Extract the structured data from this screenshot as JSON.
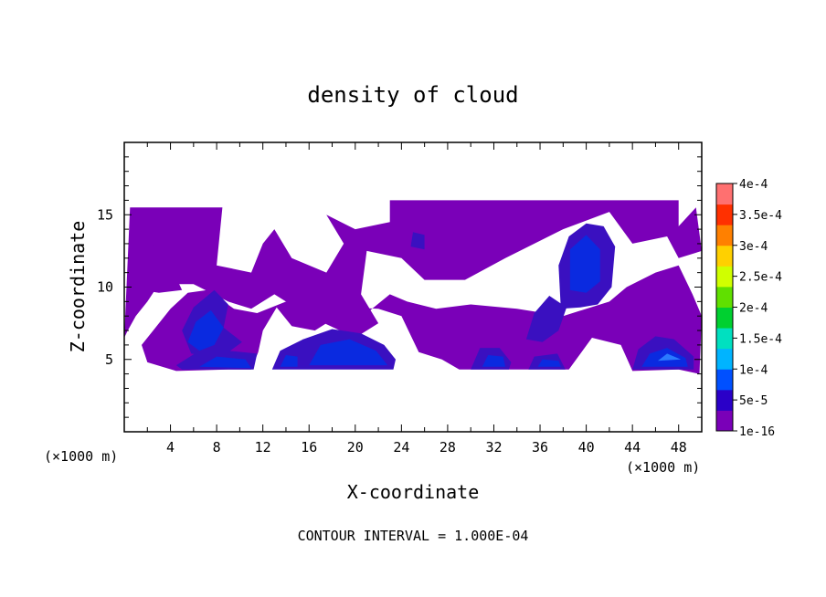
{
  "chart_data": {
    "type": "heatmap",
    "title": "density of cloud",
    "xlabel": "X-coordinate",
    "ylabel": "Z-coordinate",
    "x_unit": "(×1000 m)",
    "y_unit": "(×1000 m)",
    "footer": "CONTOUR INTERVAL = 1.000E-04",
    "xlim": [
      0,
      50
    ],
    "ylim": [
      0,
      20
    ],
    "x_ticks": [
      4,
      8,
      12,
      16,
      20,
      24,
      28,
      32,
      36,
      40,
      44,
      48
    ],
    "x_tick_labels": [
      "4",
      "8",
      "12",
      "16",
      "20",
      "24",
      "28",
      "32",
      "36",
      "40",
      "44",
      "48"
    ],
    "y_ticks": [
      5,
      10,
      15
    ],
    "y_tick_labels": [
      "5",
      "10",
      "15"
    ],
    "colorbar": {
      "labels": [
        "1e-16",
        "5e-5",
        "1e-4",
        "1.5e-4",
        "2e-4",
        "2.5e-4",
        "3e-4",
        "3.5e-4",
        "4e-4"
      ],
      "colors": [
        "#7a00b8",
        "#2a00c8",
        "#0050ff",
        "#00b4ff",
        "#00e0c0",
        "#00d030",
        "#60e000",
        "#d0ff00",
        "#ffd000",
        "#ff8000",
        "#ff3000",
        "#ff7070"
      ]
    },
    "colors": {
      "background": "#7a00b8",
      "mid": "#3a10c0",
      "high": "#0a2ae0",
      "peak": "#2a7aff"
    },
    "regions": [
      {
        "level": "background",
        "points": [
          [
            0,
            6.5
          ],
          [
            0.5,
            15.5
          ],
          [
            8.5,
            15.5
          ],
          [
            8,
            11.5
          ],
          [
            11,
            11
          ],
          [
            12,
            13
          ],
          [
            13,
            14
          ],
          [
            14.5,
            12
          ],
          [
            17.5,
            11
          ],
          [
            19,
            13
          ],
          [
            17.5,
            15
          ],
          [
            20,
            14
          ],
          [
            23,
            14.5
          ],
          [
            23,
            16
          ],
          [
            48,
            16
          ],
          [
            48,
            14.2
          ],
          [
            49.5,
            15.5
          ],
          [
            50,
            12.5
          ],
          [
            48,
            12
          ],
          [
            47,
            13.5
          ],
          [
            44,
            13
          ],
          [
            42,
            15.2
          ],
          [
            38,
            14
          ],
          [
            33,
            12
          ],
          [
            29.5,
            10.5
          ],
          [
            26,
            10.5
          ],
          [
            24,
            12
          ],
          [
            21,
            12.5
          ],
          [
            20.5,
            9.5
          ],
          [
            22,
            7.5
          ],
          [
            20,
            6.5
          ],
          [
            16,
            8
          ],
          [
            13,
            9.5
          ],
          [
            11,
            8.5
          ],
          [
            9,
            9
          ],
          [
            6,
            10.2
          ],
          [
            3,
            10.2
          ],
          [
            2,
            9
          ],
          [
            1,
            8
          ],
          [
            0.3,
            7
          ]
        ]
      },
      {
        "level": "background",
        "points": [
          [
            0.5,
            10.2
          ],
          [
            2,
            13
          ],
          [
            3,
            12.8
          ],
          [
            2.8,
            11
          ],
          [
            4,
            11.5
          ],
          [
            5,
            9.8
          ],
          [
            3,
            9.6
          ],
          [
            1.5,
            9.8
          ]
        ]
      },
      {
        "level": "background",
        "points": [
          [
            1.5,
            6
          ],
          [
            2,
            4.8
          ],
          [
            4.5,
            4.2
          ],
          [
            9,
            4.3
          ],
          [
            11,
            4.3
          ],
          [
            11.6,
            5.5
          ],
          [
            12,
            7
          ],
          [
            13.2,
            8.6
          ],
          [
            14.5,
            7.3
          ],
          [
            16.5,
            7
          ],
          [
            17.5,
            7.5
          ],
          [
            19.5,
            8.6
          ],
          [
            22,
            8.5
          ],
          [
            24,
            8
          ],
          [
            25.5,
            5.5
          ],
          [
            27.5,
            5
          ],
          [
            29,
            4.3
          ],
          [
            33,
            4.3
          ],
          [
            36,
            4.3
          ],
          [
            38.5,
            4.3
          ],
          [
            40.5,
            6.5
          ],
          [
            43,
            6
          ],
          [
            44,
            4.2
          ],
          [
            48,
            4.3
          ],
          [
            49.8,
            4
          ],
          [
            50,
            8
          ],
          [
            49.2,
            9.5
          ],
          [
            48,
            11.5
          ],
          [
            46,
            11
          ],
          [
            43.5,
            10
          ],
          [
            42,
            9
          ],
          [
            38,
            8
          ],
          [
            34,
            8.5
          ],
          [
            30,
            8.8
          ],
          [
            27,
            8.5
          ],
          [
            24.5,
            9
          ],
          [
            23,
            9.5
          ],
          [
            21,
            8.2
          ],
          [
            19,
            7.5
          ],
          [
            16.5,
            8.2
          ],
          [
            14,
            9
          ],
          [
            11.5,
            8.2
          ],
          [
            9.5,
            8.5
          ],
          [
            7.2,
            9.8
          ],
          [
            5.5,
            9.6
          ],
          [
            4,
            8.5
          ],
          [
            2.5,
            7
          ]
        ]
      },
      {
        "level": "mid",
        "points": [
          [
            5,
            7
          ],
          [
            6,
            8.6
          ],
          [
            7.8,
            9.8
          ],
          [
            9,
            8.8
          ],
          [
            8.6,
            7.2
          ],
          [
            10.2,
            6.2
          ],
          [
            9,
            5.5
          ],
          [
            7.5,
            5.2
          ],
          [
            5.8,
            5.4
          ]
        ]
      },
      {
        "level": "mid",
        "points": [
          [
            4.5,
            4.6
          ],
          [
            6.5,
            5.6
          ],
          [
            9,
            5.6
          ],
          [
            11.5,
            5.4
          ],
          [
            11.2,
            4.3
          ],
          [
            5,
            4.3
          ]
        ]
      },
      {
        "level": "mid",
        "points": [
          [
            12.8,
            4.3
          ],
          [
            13.5,
            5.6
          ],
          [
            15.5,
            6.4
          ],
          [
            18,
            7.1
          ],
          [
            20.5,
            6.8
          ],
          [
            22.5,
            6
          ],
          [
            23.5,
            5
          ],
          [
            23.3,
            4.3
          ]
        ]
      },
      {
        "level": "mid",
        "points": [
          [
            30,
            4.3
          ],
          [
            30.8,
            5.8
          ],
          [
            32.5,
            5.8
          ],
          [
            33.5,
            4.8
          ],
          [
            33.3,
            4.3
          ]
        ]
      },
      {
        "level": "mid",
        "points": [
          [
            35,
            4.3
          ],
          [
            35.5,
            5.2
          ],
          [
            37.5,
            5.4
          ],
          [
            38.2,
            4.3
          ]
        ]
      },
      {
        "level": "mid",
        "points": [
          [
            34.8,
            6.4
          ],
          [
            35.5,
            8.2
          ],
          [
            36.8,
            9.4
          ],
          [
            38.3,
            8.6
          ],
          [
            37.6,
            7
          ],
          [
            36.2,
            6.2
          ]
        ]
      },
      {
        "level": "mid",
        "points": [
          [
            37.8,
            8.5
          ],
          [
            37.6,
            11.5
          ],
          [
            38.5,
            13.5
          ],
          [
            40,
            14.4
          ],
          [
            41.5,
            14.2
          ],
          [
            42.5,
            12.8
          ],
          [
            42.2,
            10
          ],
          [
            41,
            8.8
          ],
          [
            39.5,
            8.6
          ]
        ]
      },
      {
        "level": "mid",
        "points": [
          [
            44,
            4.3
          ],
          [
            44.5,
            5.7
          ],
          [
            46,
            6.6
          ],
          [
            47.6,
            6.4
          ],
          [
            49.3,
            5.2
          ],
          [
            49.3,
            4.3
          ]
        ]
      },
      {
        "level": "mid",
        "points": [
          [
            24.8,
            12.8
          ],
          [
            25,
            13.8
          ],
          [
            26,
            13.6
          ],
          [
            26,
            12.6
          ]
        ]
      },
      {
        "level": "high",
        "points": [
          [
            5.5,
            6.2
          ],
          [
            6.2,
            7.6
          ],
          [
            7.5,
            8.4
          ],
          [
            8.6,
            7.2
          ],
          [
            7.8,
            6
          ],
          [
            6.5,
            5.6
          ]
        ]
      },
      {
        "level": "high",
        "points": [
          [
            6.5,
            4.5
          ],
          [
            8,
            5.2
          ],
          [
            10.5,
            5
          ],
          [
            11,
            4.4
          ]
        ]
      },
      {
        "level": "high",
        "points": [
          [
            13.5,
            4.5
          ],
          [
            14,
            5.3
          ],
          [
            15,
            5.2
          ],
          [
            15,
            4.5
          ]
        ]
      },
      {
        "level": "high",
        "points": [
          [
            16,
            4.6
          ],
          [
            17,
            6
          ],
          [
            19.5,
            6.4
          ],
          [
            21.8,
            5.6
          ],
          [
            22.8,
            4.6
          ]
        ]
      },
      {
        "level": "high",
        "points": [
          [
            31,
            4.5
          ],
          [
            31.5,
            5.3
          ],
          [
            32.8,
            5.2
          ],
          [
            33,
            4.5
          ]
        ]
      },
      {
        "level": "high",
        "points": [
          [
            35.8,
            4.5
          ],
          [
            36.2,
            5
          ],
          [
            37.6,
            4.9
          ],
          [
            37.8,
            4.5
          ]
        ]
      },
      {
        "level": "high",
        "points": [
          [
            38.6,
            9.8
          ],
          [
            38.6,
            12.6
          ],
          [
            40,
            13.6
          ],
          [
            41.2,
            12.6
          ],
          [
            41.2,
            10.4
          ],
          [
            40,
            9.6
          ]
        ]
      },
      {
        "level": "high",
        "points": [
          [
            44.8,
            4.5
          ],
          [
            45.5,
            5.4
          ],
          [
            47,
            5.8
          ],
          [
            48.6,
            5.1
          ],
          [
            48.8,
            4.5
          ]
        ]
      },
      {
        "level": "peak",
        "points": [
          [
            46.2,
            4.9
          ],
          [
            47,
            5.4
          ],
          [
            48.2,
            5
          ]
        ]
      }
    ]
  }
}
